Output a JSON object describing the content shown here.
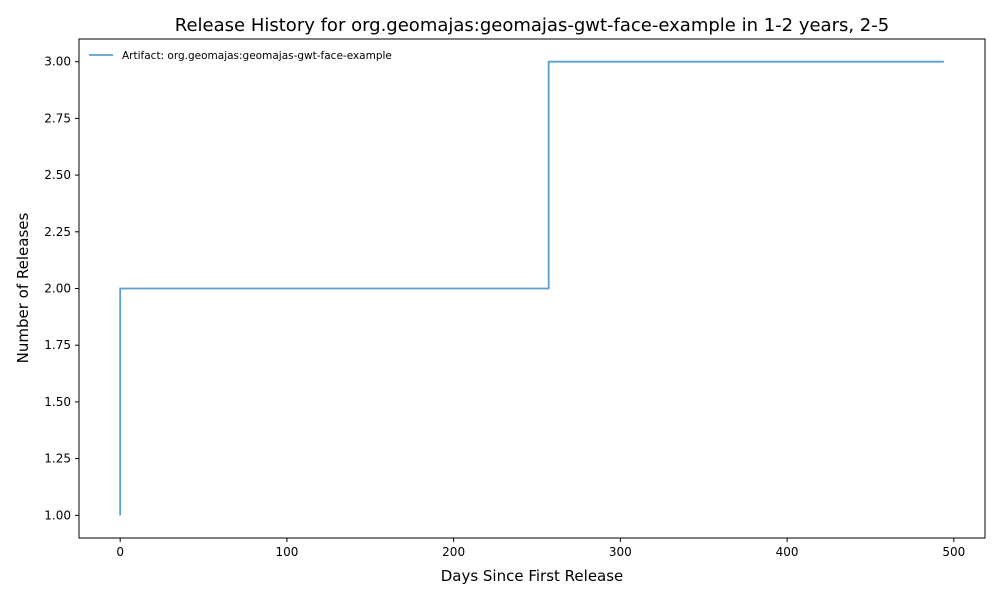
{
  "chart_data": {
    "type": "line",
    "step": "post",
    "title": "Release History for org.geomajas:geomajas-gwt-face-example in 1-2 years, 2-5",
    "xlabel": "Days Since First Release",
    "ylabel": "Number of Releases",
    "xlim": [
      -24.7,
      518.7
    ],
    "ylim": [
      0.9,
      3.1
    ],
    "xticks": [
      0,
      100,
      200,
      300,
      400,
      500
    ],
    "xtick_labels": [
      "0",
      "100",
      "200",
      "300",
      "400",
      "500"
    ],
    "yticks": [
      1.0,
      1.25,
      1.5,
      1.75,
      2.0,
      2.25,
      2.5,
      2.75,
      3.0
    ],
    "ytick_labels": [
      "1.00",
      "1.25",
      "1.50",
      "1.75",
      "2.00",
      "2.25",
      "2.50",
      "2.75",
      "3.00"
    ],
    "grid": false,
    "legend_position": "top-left",
    "series": [
      {
        "name": "Artifact: org.geomajas:geomajas-gwt-face-example",
        "color": "#5b9fd0",
        "x": [
          0,
          0,
          257,
          494
        ],
        "y": [
          1,
          2,
          3,
          3
        ]
      }
    ]
  }
}
